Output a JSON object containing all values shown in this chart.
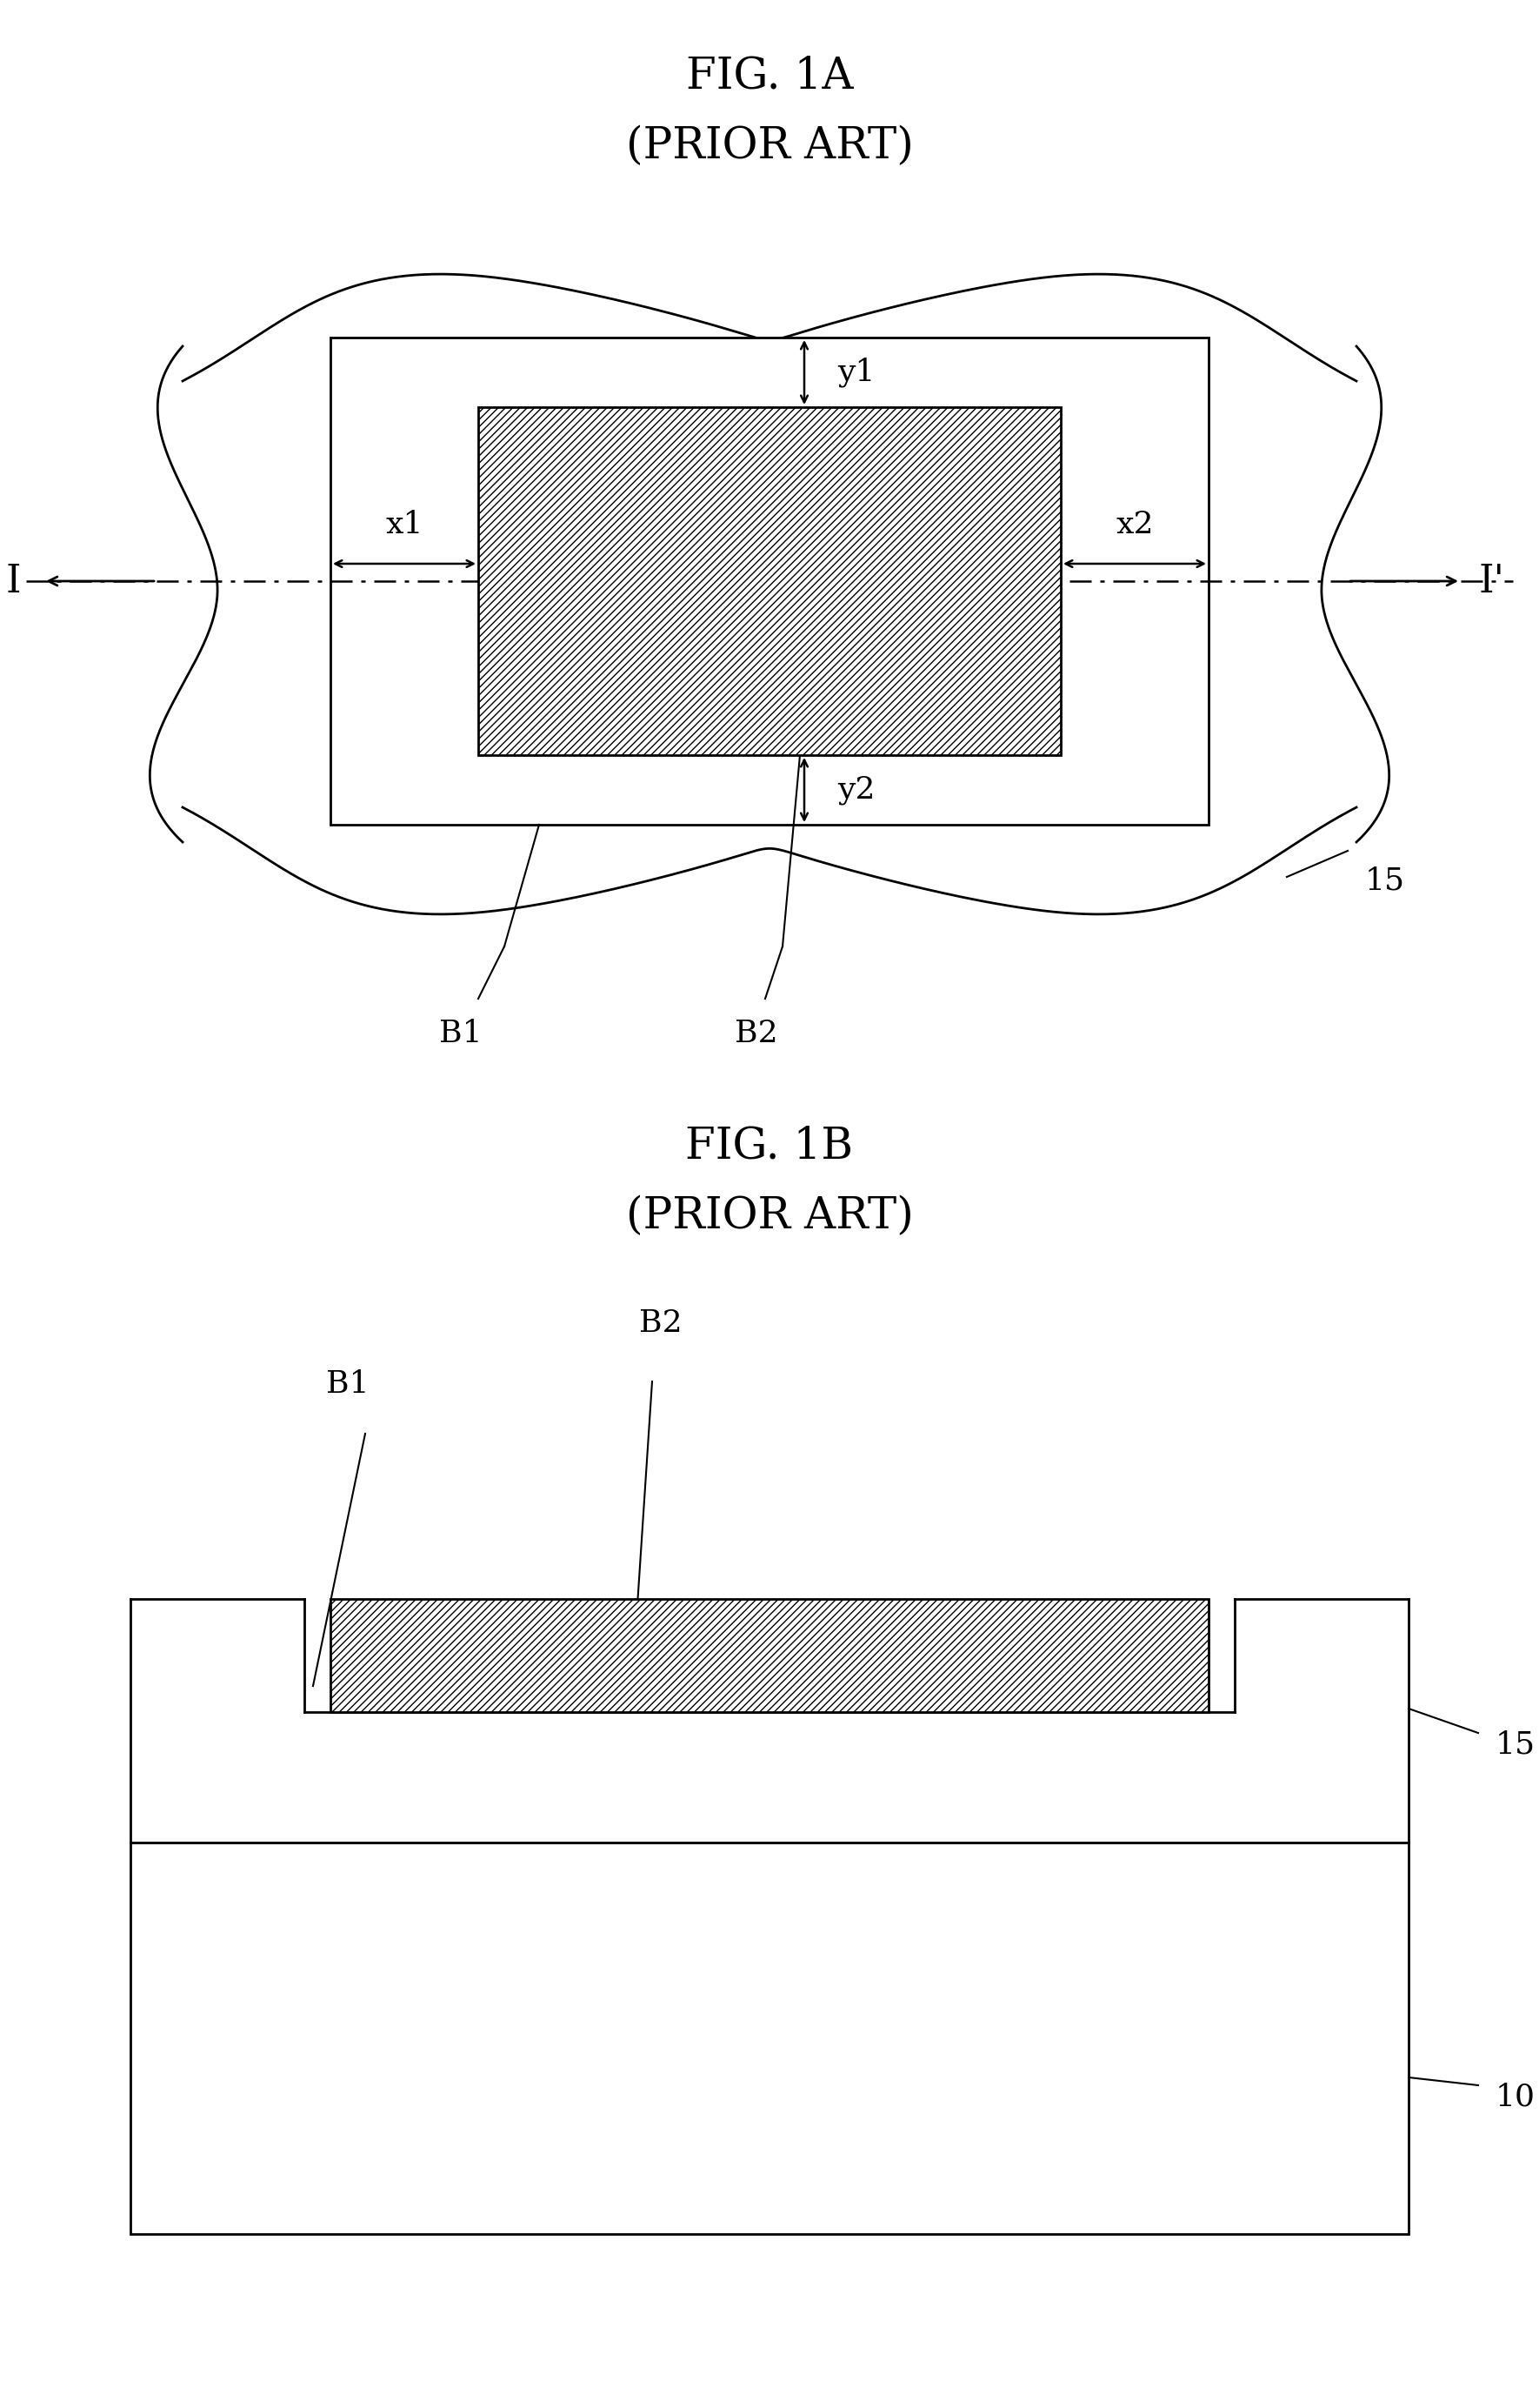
{
  "fig1a_title": "FIG. 1A",
  "fig1a_subtitle": "(PRIOR ART)",
  "fig1b_title": "FIG. 1B",
  "fig1b_subtitle": "(PRIOR ART)",
  "bg_color": "#ffffff",
  "line_color": "#000000",
  "title_fontsize": 36,
  "label_fontsize": 26,
  "ref_fontsize": 26
}
